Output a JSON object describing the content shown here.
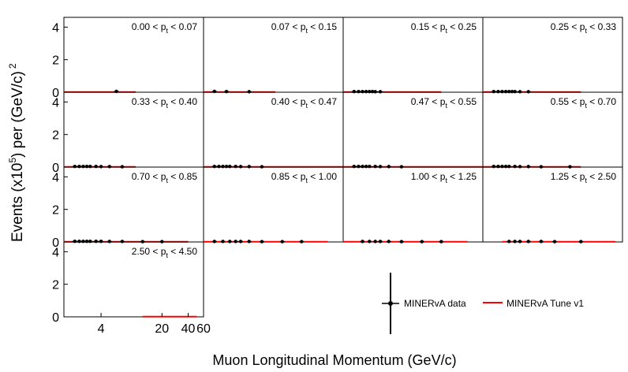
{
  "figure": {
    "ylabel": {
      "main": "Events (x10",
      "exp": "5",
      "tail": ") per (GeV/c)",
      "sq": "2"
    },
    "xlabel": "Muon Longitudinal Momentum (GeV/c)",
    "y_ticks": [
      "0",
      "2",
      "4"
    ],
    "x_ticks": [
      "4",
      "20",
      "40",
      "60"
    ],
    "legend": {
      "data_label": "MINERvA data",
      "model_label": "MINERvA Tune v1"
    },
    "colors": {
      "data": "#000000",
      "model": "#ff0000",
      "frame": "#000000"
    }
  },
  "chart_data": {
    "type": "scatter",
    "title": "",
    "xlabel": "Muon Longitudinal Momentum (GeV/c)",
    "ylabel": "Events (x10^5) per (GeV/c)^2",
    "ylim": [
      0,
      4.6
    ],
    "xlim": [
      1.5,
      60
    ],
    "x_ticks": [
      4,
      20,
      40,
      60
    ],
    "y_ticks": [
      0,
      2,
      4
    ],
    "series_names": [
      "MINERvA data",
      "MINERvA Tune v1"
    ],
    "panels": [
      {
        "range": {
          "lo": "0.00",
          "hi": "0.07"
        },
        "x": [
          6.0
        ],
        "data": [
          0.05
        ],
        "model_x": [
          1.5,
          10.0
        ]
      },
      {
        "range": {
          "lo": "0.07",
          "hi": "0.15"
        },
        "x": [
          2.0,
          2.75,
          5.0
        ],
        "data": [
          0.05,
          0.04,
          0.03
        ],
        "model_x": [
          1.5,
          10.0
        ]
      },
      {
        "range": {
          "lo": "0.15",
          "hi": "0.25"
        },
        "x": [
          2.0,
          2.25,
          2.5,
          2.75,
          3.0,
          3.25,
          3.5,
          4.0
        ],
        "data": [
          0.04,
          0.04,
          0.04,
          0.04,
          0.04,
          0.04,
          0.03,
          0.03
        ],
        "model_x": [
          1.5,
          20.0
        ]
      },
      {
        "range": {
          "lo": "0.25",
          "hi": "0.33"
        },
        "x": [
          2.0,
          2.25,
          2.5,
          2.75,
          3.0,
          3.25,
          3.5,
          4.0,
          5.0
        ],
        "data": [
          0.04,
          0.04,
          0.04,
          0.04,
          0.04,
          0.04,
          0.04,
          0.03,
          0.03
        ],
        "model_x": [
          1.5,
          20.0
        ]
      },
      {
        "range": {
          "lo": "0.33",
          "hi": "0.40"
        },
        "x": [
          2.0,
          2.25,
          2.5,
          2.75,
          3.0,
          3.5,
          4.0,
          5.0,
          7.0
        ],
        "data": [
          0.04,
          0.04,
          0.04,
          0.04,
          0.04,
          0.04,
          0.03,
          0.03,
          0.02
        ],
        "model_x": [
          1.5,
          10.0
        ]
      },
      {
        "range": {
          "lo": "0.40",
          "hi": "0.47"
        },
        "x": [
          2.0,
          2.25,
          2.5,
          2.75,
          3.0,
          3.5,
          4.0,
          5.0,
          7.0
        ],
        "data": [
          0.04,
          0.04,
          0.04,
          0.04,
          0.04,
          0.04,
          0.03,
          0.03,
          0.02
        ],
        "model_x": [
          1.5,
          60.0
        ]
      },
      {
        "range": {
          "lo": "0.47",
          "hi": "0.55"
        },
        "x": [
          2.0,
          2.25,
          2.5,
          2.75,
          3.0,
          3.5,
          4.0,
          5.0,
          7.0
        ],
        "data": [
          0.04,
          0.04,
          0.04,
          0.04,
          0.04,
          0.04,
          0.03,
          0.03,
          0.02
        ],
        "model_x": [
          1.5,
          60.0
        ]
      },
      {
        "range": {
          "lo": "0.55",
          "hi": "0.70"
        },
        "x": [
          2.0,
          2.25,
          2.5,
          2.75,
          3.0,
          3.5,
          4.0,
          5.0,
          7.0,
          15.0
        ],
        "data": [
          0.04,
          0.04,
          0.04,
          0.04,
          0.04,
          0.04,
          0.03,
          0.03,
          0.02,
          0.02
        ],
        "model_x": [
          1.5,
          20.0
        ]
      },
      {
        "range": {
          "lo": "0.70",
          "hi": "0.85"
        },
        "x": [
          2.0,
          2.25,
          2.5,
          2.75,
          3.0,
          3.5,
          4.0,
          5.0,
          7.0,
          12.0,
          20.0
        ],
        "data": [
          0.04,
          0.04,
          0.04,
          0.04,
          0.04,
          0.04,
          0.04,
          0.03,
          0.03,
          0.02,
          0.02
        ],
        "model_x": [
          1.5,
          40.0
        ]
      },
      {
        "range": {
          "lo": "0.85",
          "hi": "1.00"
        },
        "x": [
          2.0,
          2.5,
          3.0,
          3.5,
          4.0,
          5.0,
          7.0,
          12.0,
          20.0
        ],
        "data": [
          0.03,
          0.03,
          0.03,
          0.03,
          0.03,
          0.03,
          0.02,
          0.02,
          0.02
        ],
        "model_x": [
          1.5,
          40.0
        ]
      },
      {
        "range": {
          "lo": "1.00",
          "hi": "1.25"
        },
        "x": [
          2.5,
          3.0,
          3.5,
          4.0,
          5.0,
          7.0,
          12.0,
          20.0
        ],
        "data": [
          0.03,
          0.03,
          0.03,
          0.03,
          0.03,
          0.02,
          0.02,
          0.02
        ],
        "model_x": [
          1.5,
          40.0
        ]
      },
      {
        "range": {
          "lo": "1.25",
          "hi": "2.50"
        },
        "x": [
          3.0,
          3.5,
          4.0,
          5.0,
          7.0,
          10.0,
          20.0
        ],
        "data": [
          0.03,
          0.03,
          0.03,
          0.03,
          0.03,
          0.02,
          0.02
        ],
        "model_x": [
          2.5,
          50.0
        ]
      },
      {
        "range": {
          "lo": "2.50",
          "hi": "4.50"
        },
        "x": [],
        "data": [],
        "model_x": [
          12.0,
          50.0
        ]
      }
    ]
  }
}
